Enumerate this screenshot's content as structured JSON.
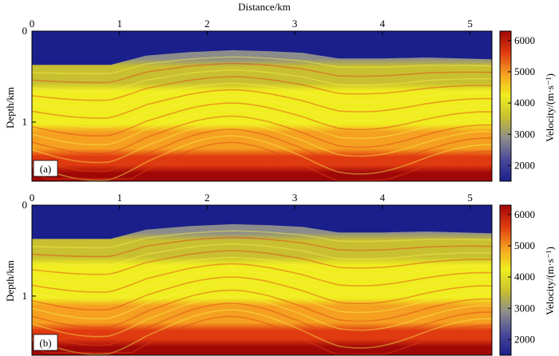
{
  "figure": {
    "xlabel": "Distance/km",
    "ylabel": "Depth/km",
    "colorbar_label": "Velocity/(m·s⁻¹)"
  },
  "chart_data": [
    {
      "type": "heatmap",
      "panel_label": "(a)",
      "xlabel": "Distance/km",
      "ylabel": "Depth/km",
      "xlim": [
        0,
        5.25
      ],
      "ylim": [
        1.65,
        0
      ],
      "x_ticks": [
        0,
        1,
        2,
        3,
        4,
        5
      ],
      "y_ticks": [
        0,
        1
      ],
      "colorbar": {
        "label": "Velocity/(m·s⁻¹)",
        "range": [
          1500,
          6300
        ],
        "ticks": [
          2000,
          3000,
          4000,
          5000,
          6000
        ],
        "colormap": [
          "#1a1f8c",
          "#4a4a9a",
          "#8c8c8c",
          "#c8c030",
          "#f0ee20",
          "#f5a020",
          "#e03a10",
          "#a00808"
        ]
      },
      "water_velocity": 1500,
      "seafloor_depth_profile": {
        "x": [
          0,
          0.9,
          1.3,
          1.8,
          2.3,
          2.7,
          3.1,
          3.5,
          4.0,
          4.5,
          5.25
        ],
        "depth": [
          0.37,
          0.37,
          0.27,
          0.23,
          0.21,
          0.22,
          0.24,
          0.3,
          0.3,
          0.29,
          0.31
        ]
      },
      "velocity_by_depth": {
        "depth": [
          0.3,
          0.5,
          0.7,
          0.9,
          1.1,
          1.3,
          1.5,
          1.65
        ],
        "velocity": [
          3200,
          3700,
          4000,
          4200,
          4700,
          5200,
          5900,
          6200
        ]
      }
    },
    {
      "type": "heatmap",
      "panel_label": "(b)",
      "xlabel": "",
      "ylabel": "Depth/km",
      "xlim": [
        0,
        5.25
      ],
      "ylim": [
        1.65,
        0
      ],
      "x_ticks": [
        0,
        1,
        2,
        3,
        4,
        5
      ],
      "y_ticks": [
        0,
        1
      ],
      "colorbar": {
        "label": "Velocity/(m·s⁻¹)",
        "range": [
          1500,
          6300
        ],
        "ticks": [
          2000,
          3000,
          4000,
          5000,
          6000
        ],
        "colormap": [
          "#1a1f8c",
          "#4a4a9a",
          "#8c8c8c",
          "#c8c030",
          "#f0ee20",
          "#f5a020",
          "#e03a10",
          "#a00808"
        ]
      },
      "water_velocity": 1500,
      "seafloor_depth_profile": {
        "x": [
          0,
          0.9,
          1.3,
          1.8,
          2.3,
          2.7,
          3.1,
          3.5,
          4.0,
          4.5,
          5.25
        ],
        "depth": [
          0.37,
          0.37,
          0.27,
          0.23,
          0.21,
          0.22,
          0.24,
          0.3,
          0.3,
          0.29,
          0.31
        ]
      },
      "velocity_by_depth": {
        "depth": [
          0.3,
          0.5,
          0.7,
          0.9,
          1.1,
          1.3,
          1.5,
          1.65
        ],
        "velocity": [
          3200,
          3700,
          4000,
          4200,
          4700,
          5200,
          5900,
          6200
        ]
      }
    }
  ]
}
